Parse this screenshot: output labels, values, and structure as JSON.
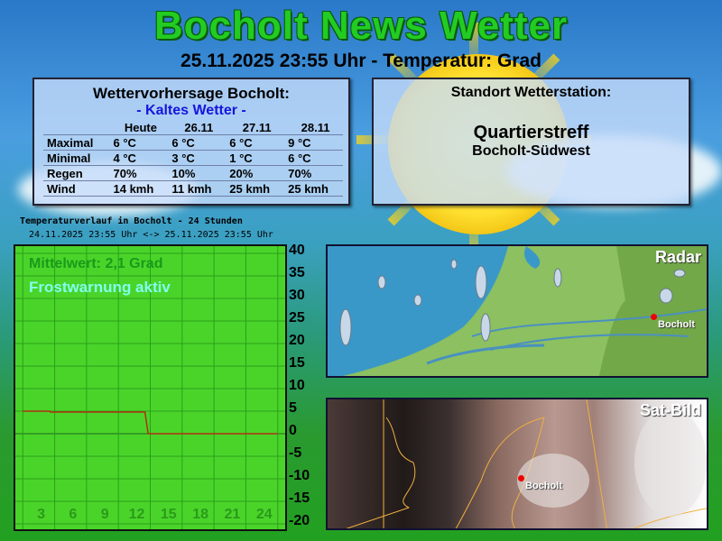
{
  "header": {
    "title": "Bocholt News Wetter",
    "subtitle": "25.11.2025 23:55 Uhr - Temperatur:  Grad"
  },
  "forecast": {
    "title": "Wettervorhersage Bocholt:",
    "subtitle": "- Kaltes Wetter -",
    "columns": [
      "",
      "Heute",
      "26.11",
      "27.11",
      "28.11"
    ],
    "rows": [
      [
        "Maximal",
        "6 °C",
        "6 °C",
        "6 °C",
        "9 °C"
      ],
      [
        "Minimal",
        "4 °C",
        "3 °C",
        "1 °C",
        "6 °C"
      ],
      [
        "Regen",
        "70%",
        "10%",
        "20%",
        "70%"
      ],
      [
        "Wind",
        "14 kmh",
        "11 kmh",
        "25 kmh",
        "25 kmh"
      ]
    ]
  },
  "station": {
    "title": "Standort Wetterstation:",
    "name": "Quartierstreff",
    "location": "Bocholt-Südwest"
  },
  "chart_data": {
    "type": "line",
    "title": "Temperaturverlauf in Bocholt - 24 Stunden",
    "subtitle": "24.11.2025 23:55 Uhr <-> 25.11.2025 23:55 Uhr",
    "annotations": [
      "Mittelwert: 2,1 Grad",
      "Frostwarnung aktiv"
    ],
    "x": [
      0,
      2.5,
      2.6,
      11.5,
      11.8,
      24
    ],
    "y": [
      5.0,
      5.0,
      4.8,
      4.8,
      0,
      0
    ],
    "xlim": [
      -0.7,
      24.7
    ],
    "ylim": [
      -20,
      40
    ],
    "xticks": [
      "3",
      "6",
      "9",
      "12",
      "15",
      "18",
      "21",
      "24"
    ],
    "yticks": [
      "40",
      "35",
      "30",
      "25",
      "20",
      "15",
      "10",
      "5",
      "0",
      "-5",
      "-10",
      "-15",
      "-20"
    ],
    "grid": true,
    "line_color": "#b03010",
    "background": "#4ad42a"
  },
  "radar": {
    "label": "Radar",
    "city": "Bocholt"
  },
  "satellite": {
    "label": "Sat-Bild",
    "city": "Bocholt"
  }
}
